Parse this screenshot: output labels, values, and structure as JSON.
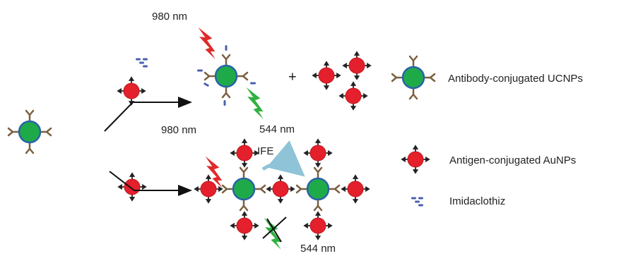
{
  "labels": {
    "excitation_top": "980 nm",
    "emission_top": "544 nm",
    "plus": "+",
    "excitation_bottom": "980 nm",
    "ife": "IFE",
    "emission_bottom": "544 nm"
  },
  "legend": [
    "Antibody-conjugated UCNPs",
    "Antigen-conjugated AuNPs",
    "Imidaclothiz"
  ]
}
